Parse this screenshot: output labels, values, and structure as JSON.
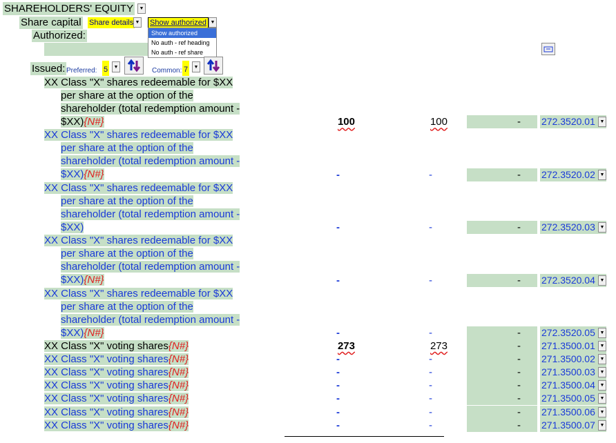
{
  "header": {
    "title": "SHAREHOLDERS' EQUITY"
  },
  "share_capital": {
    "label": "Share capital",
    "details_button": "Share details",
    "selected_option": "Show authorized",
    "options": [
      "Show authorized",
      "No auth - ref heading",
      "No auth - ref share"
    ]
  },
  "authorized_label": "Authorized:",
  "issued": {
    "label": "Issued:",
    "preferred_label": "Preferred:",
    "preferred_count": "5",
    "common_label": "Common:",
    "common_count": "7"
  },
  "rows": [
    {
      "lines": [
        "XX Class \"X\" shares redeemable for $XX",
        "per share at the option of the",
        "shareholder (total redemption amount -",
        "$XX)"
      ],
      "ref": "{N#}",
      "color": "black",
      "val1": "100",
      "val2": "100",
      "dash": "-",
      "code": "272.3520.01"
    },
    {
      "lines": [
        "XX Class \"X\" shares redeemable for $XX",
        "per share at the option of the",
        "shareholder (total redemption amount -",
        "$XX)"
      ],
      "ref": "{N#}",
      "color": "blue",
      "val1": "-",
      "val2": "-",
      "dash": "-",
      "code": "272.3520.02"
    },
    {
      "lines": [
        "XX Class \"X\" shares redeemable for $XX",
        "per share at the option of the",
        "shareholder (total redemption amount -",
        "$XX)"
      ],
      "ref": "",
      "color": "blue",
      "val1": "-",
      "val2": "-",
      "dash": "-",
      "code": "272.3520.03"
    },
    {
      "lines": [
        "XX Class \"X\" shares redeemable for $XX",
        "per share at the option of the",
        "shareholder (total redemption amount -",
        "$XX)"
      ],
      "ref": "{N#}",
      "color": "blue",
      "val1": "-",
      "val2": "-",
      "dash": "-",
      "code": "272.3520.04"
    },
    {
      "lines": [
        "XX Class \"X\" shares redeemable for $XX",
        "per share at the option of the",
        "shareholder (total redemption amount -",
        "$XX)"
      ],
      "ref": "{N#}",
      "color": "blue",
      "val1": "-",
      "val2": "-",
      "dash": "-",
      "code": "272.3520.05"
    },
    {
      "lines": [
        "XX Class \"X\" voting shares"
      ],
      "ref": "{N#}",
      "color": "black",
      "val1": "273",
      "val2": "273",
      "dash": "-",
      "code": "271.3500.01"
    },
    {
      "lines": [
        "XX Class \"X\" voting shares"
      ],
      "ref": "{N#}",
      "color": "blue",
      "val1": "-",
      "val2": "-",
      "dash": "-",
      "code": "271.3500.02"
    },
    {
      "lines": [
        "XX Class \"X\" voting shares"
      ],
      "ref": "{N#}",
      "color": "blue",
      "val1": "-",
      "val2": "-",
      "dash": "-",
      "code": "271.3500.03"
    },
    {
      "lines": [
        "XX Class \"X\" voting shares"
      ],
      "ref": "{N#}",
      "color": "blue",
      "val1": "-",
      "val2": "-",
      "dash": "-",
      "code": "271.3500.04"
    },
    {
      "lines": [
        "XX Class \"X\" voting shares"
      ],
      "ref": "{N#}",
      "color": "blue",
      "val1": "-",
      "val2": "-",
      "dash": "-",
      "code": "271.3500.05"
    },
    {
      "lines": [
        "XX Class \"X\" voting shares"
      ],
      "ref": "{N#}",
      "color": "blue",
      "val1": "-",
      "val2": "-",
      "dash": "-",
      "code": "271.3500.06"
    },
    {
      "lines": [
        "XX Class \"X\" voting shares"
      ],
      "ref": "{N#}",
      "color": "blue",
      "val1": "-",
      "val2": "-",
      "dash": "-",
      "code": "271.3500.07"
    }
  ],
  "colors": {
    "green": "#c6dfc6",
    "yellow": "#ffff00",
    "blue_text": "#1a3ad8",
    "ref_red": "#e02020"
  }
}
